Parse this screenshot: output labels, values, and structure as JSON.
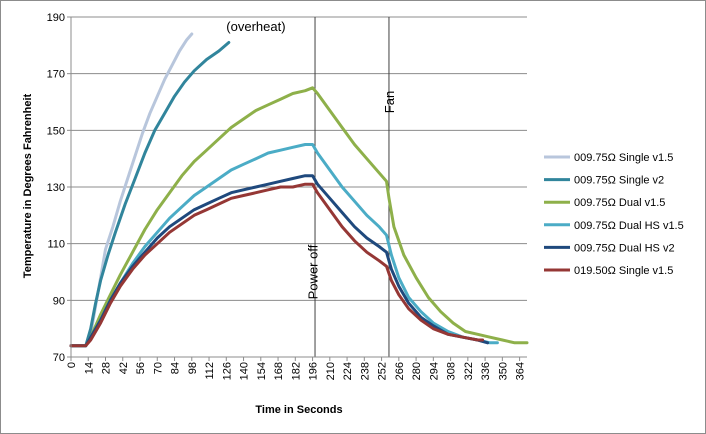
{
  "chart_data": {
    "type": "line",
    "xlabel": "Time in Seconds",
    "ylabel": "Temperature in Degrees Fahrenheit",
    "xlim": [
      0,
      370
    ],
    "ylim": [
      70,
      190
    ],
    "yticks": [
      70,
      90,
      110,
      130,
      150,
      170,
      190
    ],
    "xticks": [
      0,
      14,
      28,
      42,
      56,
      70,
      84,
      98,
      112,
      126,
      140,
      154,
      168,
      182,
      196,
      210,
      224,
      238,
      252,
      266,
      280,
      294,
      308,
      322,
      336,
      350,
      364
    ],
    "grid": "horizontal",
    "legend_position": "right",
    "annotations": [
      {
        "text": "(overheat)",
        "x": 126,
        "y": 185,
        "color": "#ff0000"
      },
      {
        "text": "Power off",
        "x": 200,
        "y": 100,
        "vertical_line_x": 198
      },
      {
        "text": "Fan",
        "x": 262,
        "y": 160,
        "vertical_line_x": 258
      }
    ],
    "series": [
      {
        "name": "009.75Ω Single v1.5",
        "color": "#b8c6dc",
        "points": [
          [
            0,
            74
          ],
          [
            12,
            74
          ],
          [
            16,
            78
          ],
          [
            20,
            88
          ],
          [
            24,
            98
          ],
          [
            28,
            108
          ],
          [
            34,
            116
          ],
          [
            40,
            125
          ],
          [
            46,
            133
          ],
          [
            52,
            141
          ],
          [
            58,
            149
          ],
          [
            64,
            156
          ],
          [
            70,
            162
          ],
          [
            76,
            168
          ],
          [
            82,
            173
          ],
          [
            88,
            178
          ],
          [
            94,
            182
          ],
          [
            98,
            184
          ]
        ]
      },
      {
        "name": "009.75Ω Single v2",
        "color": "#31859c",
        "points": [
          [
            0,
            74
          ],
          [
            12,
            74
          ],
          [
            16,
            80
          ],
          [
            20,
            89
          ],
          [
            24,
            97
          ],
          [
            30,
            106
          ],
          [
            36,
            114
          ],
          [
            44,
            124
          ],
          [
            52,
            133
          ],
          [
            60,
            142
          ],
          [
            68,
            150
          ],
          [
            76,
            156
          ],
          [
            84,
            162
          ],
          [
            92,
            167
          ],
          [
            100,
            171
          ],
          [
            110,
            175
          ],
          [
            120,
            178
          ],
          [
            128,
            181
          ]
        ]
      },
      {
        "name": "009.75Ω Dual v1.5",
        "color": "#8eb04a",
        "points": [
          [
            0,
            74
          ],
          [
            12,
            74
          ],
          [
            16,
            77
          ],
          [
            24,
            85
          ],
          [
            32,
            92
          ],
          [
            40,
            99
          ],
          [
            50,
            107
          ],
          [
            60,
            115
          ],
          [
            70,
            122
          ],
          [
            80,
            128
          ],
          [
            90,
            134
          ],
          [
            100,
            139
          ],
          [
            110,
            143
          ],
          [
            120,
            147
          ],
          [
            130,
            151
          ],
          [
            140,
            154
          ],
          [
            150,
            157
          ],
          [
            160,
            159
          ],
          [
            170,
            161
          ],
          [
            180,
            163
          ],
          [
            190,
            164
          ],
          [
            196,
            165
          ],
          [
            200,
            163
          ],
          [
            210,
            157
          ],
          [
            220,
            151
          ],
          [
            230,
            145
          ],
          [
            240,
            140
          ],
          [
            250,
            135
          ],
          [
            256,
            132
          ],
          [
            258,
            126
          ],
          [
            262,
            116
          ],
          [
            270,
            106
          ],
          [
            280,
            98
          ],
          [
            290,
            91
          ],
          [
            300,
            86
          ],
          [
            310,
            82
          ],
          [
            320,
            79
          ],
          [
            330,
            78
          ],
          [
            340,
            77
          ],
          [
            350,
            76
          ],
          [
            360,
            75
          ],
          [
            370,
            75
          ]
        ]
      },
      {
        "name": "009.75Ω Dual HS v1.5",
        "color": "#4bacc6",
        "points": [
          [
            0,
            74
          ],
          [
            12,
            74
          ],
          [
            16,
            77
          ],
          [
            24,
            83
          ],
          [
            32,
            90
          ],
          [
            40,
            96
          ],
          [
            50,
            103
          ],
          [
            60,
            109
          ],
          [
            70,
            114
          ],
          [
            80,
            119
          ],
          [
            90,
            123
          ],
          [
            100,
            127
          ],
          [
            110,
            130
          ],
          [
            120,
            133
          ],
          [
            130,
            136
          ],
          [
            140,
            138
          ],
          [
            150,
            140
          ],
          [
            160,
            142
          ],
          [
            170,
            143
          ],
          [
            180,
            144
          ],
          [
            190,
            145
          ],
          [
            196,
            145
          ],
          [
            200,
            142
          ],
          [
            210,
            136
          ],
          [
            220,
            130
          ],
          [
            230,
            125
          ],
          [
            240,
            120
          ],
          [
            250,
            116
          ],
          [
            256,
            113
          ],
          [
            260,
            106
          ],
          [
            266,
            98
          ],
          [
            274,
            91
          ],
          [
            284,
            86
          ],
          [
            294,
            82
          ],
          [
            306,
            79
          ],
          [
            318,
            77
          ],
          [
            330,
            76
          ],
          [
            340,
            75
          ],
          [
            346,
            75
          ]
        ]
      },
      {
        "name": "009.75Ω Dual HS v2",
        "color": "#1f497d",
        "points": [
          [
            0,
            74
          ],
          [
            12,
            74
          ],
          [
            16,
            77
          ],
          [
            24,
            83
          ],
          [
            32,
            90
          ],
          [
            40,
            96
          ],
          [
            50,
            102
          ],
          [
            60,
            107
          ],
          [
            70,
            112
          ],
          [
            80,
            116
          ],
          [
            90,
            119
          ],
          [
            100,
            122
          ],
          [
            110,
            124
          ],
          [
            120,
            126
          ],
          [
            130,
            128
          ],
          [
            140,
            129
          ],
          [
            150,
            130
          ],
          [
            160,
            131
          ],
          [
            170,
            132
          ],
          [
            180,
            133
          ],
          [
            190,
            134
          ],
          [
            196,
            134
          ],
          [
            200,
            131
          ],
          [
            210,
            126
          ],
          [
            220,
            121
          ],
          [
            230,
            116
          ],
          [
            240,
            112
          ],
          [
            250,
            109
          ],
          [
            256,
            107
          ],
          [
            260,
            101
          ],
          [
            266,
            95
          ],
          [
            274,
            89
          ],
          [
            284,
            84
          ],
          [
            294,
            81
          ],
          [
            306,
            78
          ],
          [
            318,
            77
          ],
          [
            330,
            76
          ],
          [
            338,
            75
          ]
        ]
      },
      {
        "name": "019.50Ω Single v1.5",
        "color": "#953735",
        "points": [
          [
            0,
            74
          ],
          [
            12,
            74
          ],
          [
            16,
            76
          ],
          [
            24,
            82
          ],
          [
            32,
            89
          ],
          [
            40,
            95
          ],
          [
            50,
            101
          ],
          [
            60,
            106
          ],
          [
            70,
            110
          ],
          [
            80,
            114
          ],
          [
            90,
            117
          ],
          [
            100,
            120
          ],
          [
            110,
            122
          ],
          [
            120,
            124
          ],
          [
            130,
            126
          ],
          [
            140,
            127
          ],
          [
            150,
            128
          ],
          [
            160,
            129
          ],
          [
            170,
            130
          ],
          [
            180,
            130
          ],
          [
            190,
            131
          ],
          [
            196,
            131
          ],
          [
            200,
            128
          ],
          [
            210,
            122
          ],
          [
            220,
            116
          ],
          [
            230,
            111
          ],
          [
            240,
            107
          ],
          [
            250,
            104
          ],
          [
            256,
            102
          ],
          [
            260,
            97
          ],
          [
            266,
            92
          ],
          [
            274,
            87
          ],
          [
            284,
            83
          ],
          [
            294,
            80
          ],
          [
            306,
            78
          ],
          [
            318,
            77
          ],
          [
            330,
            76
          ],
          [
            334,
            76
          ]
        ]
      }
    ]
  }
}
